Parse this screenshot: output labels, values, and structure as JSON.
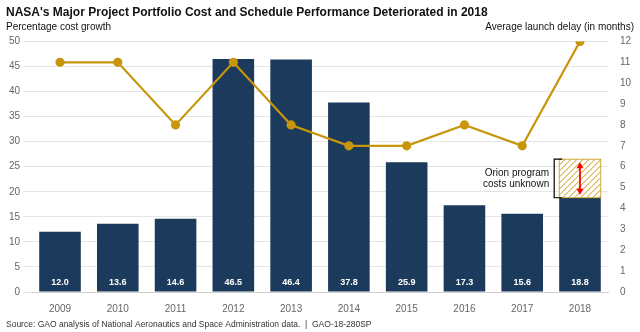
{
  "chart_data": {
    "type": "bar",
    "title": "NASA's Major Project Portfolio Cost and Schedule Performance Deteriorated in 2018",
    "ylabel": "Percentage cost growth",
    "y2label": "Average launch delay (in months)",
    "source": "Source: GAO analysis of National Aeronautics and Space Administration data.  |  GAO-18-280SP",
    "categories": [
      "2009",
      "2010",
      "2011",
      "2012",
      "2013",
      "2014",
      "2015",
      "2016",
      "2017",
      "2018"
    ],
    "series": [
      {
        "type": "bar",
        "color": "#1b3a5c",
        "values": [
          12.0,
          13.6,
          14.6,
          46.5,
          46.4,
          37.8,
          25.9,
          17.3,
          15.6,
          18.8
        ],
        "value_labels": [
          "12.0",
          "13.6",
          "14.6",
          "46.5",
          "46.4",
          "37.8",
          "25.9",
          "17.3",
          "15.6",
          "18.8"
        ],
        "data_labels": true
      },
      {
        "type": "line",
        "axis": "y2",
        "color": "#c8960c",
        "marker": "o",
        "values": [
          11.0,
          11.0,
          8.0,
          11.0,
          8.0,
          7.0,
          7.0,
          8.0,
          7.0,
          12.0
        ]
      }
    ],
    "ylim": [
      0,
      50
    ],
    "yticks": [
      0,
      5,
      10,
      15,
      20,
      25,
      30,
      35,
      40,
      45,
      50
    ],
    "y2lim": [
      0,
      12
    ],
    "y2ticks": [
      0,
      1,
      2,
      3,
      4,
      5,
      6,
      7,
      8,
      9,
      10,
      11,
      12
    ],
    "grid": true,
    "annotations": [
      {
        "type": "hatch",
        "category": "2018",
        "range": [
          18.8,
          26.5
        ],
        "color": "#c8960c",
        "text": "Orion program\ncosts unknown"
      },
      {
        "type": "arrow",
        "category": "2018",
        "range": [
          18.8,
          26.5
        ],
        "color": "red"
      }
    ]
  }
}
